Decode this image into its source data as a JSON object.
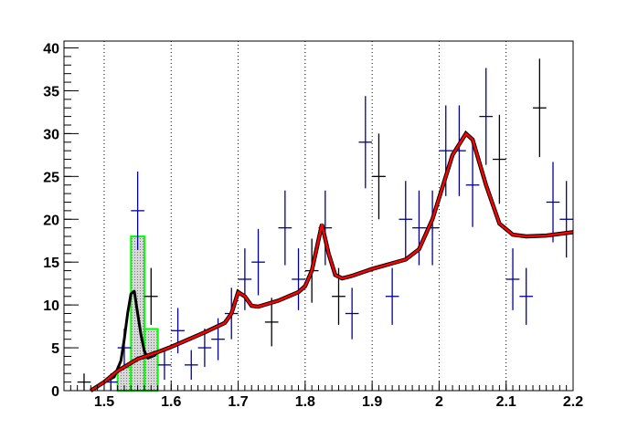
{
  "chart_data": {
    "type": "scatter",
    "title": "",
    "xlabel": "",
    "ylabel": "",
    "xlim": [
      1.44,
      2.2
    ],
    "ylim": [
      0,
      40.8
    ],
    "x_ticks": [
      "1.5",
      "1.6",
      "1.7",
      "1.8",
      "1.9",
      "2",
      "2.1",
      "2.2"
    ],
    "y_ticks": [
      "0",
      "5",
      "10",
      "15",
      "20",
      "25",
      "30",
      "35",
      "40"
    ],
    "grid": "vertical dotted",
    "bin_width": 0.02,
    "points": [
      {
        "x": 1.47,
        "y": 1,
        "color": "#000000"
      },
      {
        "x": 1.51,
        "y": 1,
        "color": "#000099"
      },
      {
        "x": 1.53,
        "y": 5,
        "color": "#000099"
      },
      {
        "x": 1.55,
        "y": 21,
        "color": "#000099"
      },
      {
        "x": 1.57,
        "y": 11,
        "color": "#000000"
      },
      {
        "x": 1.59,
        "y": 3,
        "color": "#000099"
      },
      {
        "x": 1.61,
        "y": 7,
        "color": "#000099"
      },
      {
        "x": 1.63,
        "y": 3,
        "color": "#000099"
      },
      {
        "x": 1.65,
        "y": 5,
        "color": "#000099"
      },
      {
        "x": 1.67,
        "y": 6,
        "color": "#000099"
      },
      {
        "x": 1.69,
        "y": 9,
        "color": "#000099"
      },
      {
        "x": 1.71,
        "y": 13,
        "color": "#000099"
      },
      {
        "x": 1.73,
        "y": 15,
        "color": "#000099"
      },
      {
        "x": 1.75,
        "y": 8,
        "color": "#000000"
      },
      {
        "x": 1.77,
        "y": 19,
        "color": "#000099"
      },
      {
        "x": 1.79,
        "y": 13,
        "color": "#000099"
      },
      {
        "x": 1.81,
        "y": 14,
        "color": "#000000"
      },
      {
        "x": 1.83,
        "y": 19,
        "color": "#000099"
      },
      {
        "x": 1.85,
        "y": 11,
        "color": "#000000"
      },
      {
        "x": 1.87,
        "y": 9,
        "color": "#000099"
      },
      {
        "x": 1.89,
        "y": 29,
        "color": "#000099"
      },
      {
        "x": 1.91,
        "y": 25,
        "color": "#000000"
      },
      {
        "x": 1.93,
        "y": 11,
        "color": "#000099"
      },
      {
        "x": 1.95,
        "y": 20,
        "color": "#000099"
      },
      {
        "x": 1.97,
        "y": 19,
        "color": "#000099"
      },
      {
        "x": 1.99,
        "y": 19,
        "color": "#000099"
      },
      {
        "x": 2.01,
        "y": 28,
        "color": "#000099"
      },
      {
        "x": 2.03,
        "y": 28,
        "color": "#000099"
      },
      {
        "x": 2.05,
        "y": 24,
        "color": "#000099"
      },
      {
        "x": 2.07,
        "y": 32,
        "color": "#000099"
      },
      {
        "x": 2.09,
        "y": 27,
        "color": "#000000"
      },
      {
        "x": 2.11,
        "y": 13,
        "color": "#000099"
      },
      {
        "x": 2.13,
        "y": 11,
        "color": "#000099"
      },
      {
        "x": 2.15,
        "y": 33,
        "color": "#000000"
      },
      {
        "x": 2.17,
        "y": 22,
        "color": "#000099"
      },
      {
        "x": 2.19,
        "y": 20,
        "color": "#000099"
      }
    ],
    "histogram": {
      "color": "#00ff00",
      "bins": [
        {
          "x0": 1.5,
          "x1": 1.52,
          "y": 0
        },
        {
          "x0": 1.52,
          "x1": 1.54,
          "y": 2.7
        },
        {
          "x0": 1.54,
          "x1": 1.56,
          "y": 18
        },
        {
          "x0": 1.56,
          "x1": 1.58,
          "y": 7.2
        }
      ]
    },
    "curves": [
      {
        "color": "#000000",
        "points": [
          [
            1.48,
            0
          ],
          [
            1.5,
            1
          ],
          [
            1.515,
            1.6
          ],
          [
            1.525,
            3.5
          ],
          [
            1.53,
            6
          ],
          [
            1.535,
            9
          ],
          [
            1.54,
            11.3
          ],
          [
            1.545,
            11.6
          ],
          [
            1.55,
            9
          ],
          [
            1.555,
            6.5
          ],
          [
            1.56,
            4.6
          ],
          [
            1.565,
            3.8
          ],
          [
            1.575,
            4.1
          ],
          [
            1.58,
            4.5
          ]
        ]
      },
      {
        "color": "#ff0000",
        "points": [
          [
            1.48,
            0
          ],
          [
            1.5,
            1
          ],
          [
            1.52,
            2.3
          ],
          [
            1.55,
            3.7
          ],
          [
            1.58,
            4.5
          ],
          [
            1.6,
            5.1
          ],
          [
            1.65,
            6.8
          ],
          [
            1.68,
            7.9
          ],
          [
            1.69,
            9
          ],
          [
            1.7,
            11.5
          ],
          [
            1.71,
            11
          ],
          [
            1.72,
            9.9
          ],
          [
            1.73,
            9.8
          ],
          [
            1.76,
            10.5
          ],
          [
            1.79,
            11.5
          ],
          [
            1.8,
            12.2
          ],
          [
            1.81,
            14
          ],
          [
            1.825,
            19.4
          ],
          [
            1.835,
            16
          ],
          [
            1.845,
            13.5
          ],
          [
            1.855,
            13.1
          ],
          [
            1.87,
            13.4
          ],
          [
            1.9,
            14.2
          ],
          [
            1.95,
            15.3
          ],
          [
            1.97,
            16.5
          ],
          [
            1.99,
            20
          ],
          [
            2.0,
            22.5
          ],
          [
            2.02,
            27.5
          ],
          [
            2.04,
            30
          ],
          [
            2.05,
            29.3
          ],
          [
            2.07,
            24
          ],
          [
            2.09,
            19.5
          ],
          [
            2.11,
            18.2
          ],
          [
            2.13,
            18
          ],
          [
            2.16,
            18.1
          ],
          [
            2.2,
            18.5
          ]
        ]
      }
    ]
  }
}
